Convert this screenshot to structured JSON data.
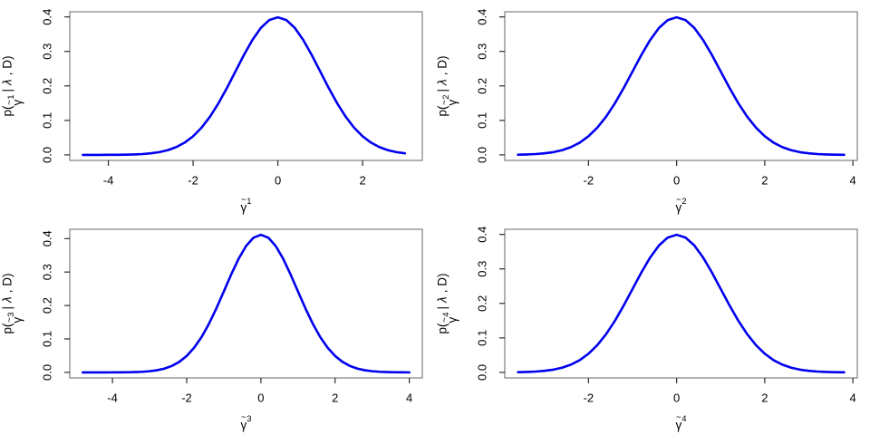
{
  "figure": {
    "background": "#ffffff",
    "curve_color": "#0000ee",
    "box_color": "#898989",
    "tick_color": "#2b2b2b",
    "text_color": "#000000",
    "label_parts": {
      "p_open": "p(",
      "gamma": "γ",
      "tilde": "~",
      "pipe": "|",
      "lambda": "λ",
      "comma": ",",
      "d_close": "D)"
    }
  },
  "chart_data": [
    {
      "type": "line",
      "panel": "top-left",
      "title": "",
      "xlabel": "γ̃₁",
      "ylabel": "p(γ̃₁ | λ , D)",
      "label_index": "1",
      "legend": "none",
      "grid": false,
      "x_ticks": [
        -4,
        -2,
        0,
        2
      ],
      "y_ticks": [
        "0.0",
        "0.1",
        "0.2",
        "0.3",
        "0.4"
      ],
      "xlim": [
        -4.91,
        3.41
      ],
      "ylim": [
        -0.016,
        0.4149
      ],
      "x": [
        -4.6,
        -4.4,
        -4.2,
        -4,
        -3.8,
        -3.6,
        -3.4,
        -3.2,
        -3,
        -2.8,
        -2.6,
        -2.4,
        -2.2,
        -2,
        -1.8,
        -1.6,
        -1.4,
        -1.2,
        -1,
        -0.8,
        -0.6,
        -0.4,
        -0.2,
        0,
        0.2,
        0.4,
        0.6,
        0.8,
        1,
        1.2,
        1.4,
        1.6,
        1.8,
        2,
        2.2,
        2.4,
        2.6,
        2.8,
        3
      ],
      "y": [
        1e-05,
        2e-05,
        6e-05,
        0.00013,
        0.00029,
        0.00061,
        0.00123,
        0.00238,
        0.00443,
        0.00792,
        0.01358,
        0.02239,
        0.03547,
        0.05399,
        0.07895,
        0.11092,
        0.14973,
        0.19419,
        0.24197,
        0.28969,
        0.33322,
        0.36827,
        0.39104,
        0.39894,
        0.39104,
        0.36827,
        0.33322,
        0.28969,
        0.24197,
        0.19419,
        0.14973,
        0.11092,
        0.07895,
        0.05399,
        0.03547,
        0.02239,
        0.01358,
        0.00792,
        0.00443
      ]
    },
    {
      "type": "line",
      "panel": "top-right",
      "title": "",
      "xlabel": "γ̃₂",
      "ylabel": "p(γ̃₂ | λ , D)",
      "label_index": "2",
      "legend": "none",
      "grid": false,
      "x_ticks": [
        -2,
        0,
        2,
        4
      ],
      "y_ticks": [
        "0.0",
        "0.1",
        "0.2",
        "0.3",
        "0.4"
      ],
      "xlim": [
        -3.9,
        4.1
      ],
      "ylim": [
        -0.016,
        0.4149
      ],
      "x": [
        -3.6,
        -3.4,
        -3.2,
        -3,
        -2.8,
        -2.6,
        -2.4,
        -2.2,
        -2,
        -1.8,
        -1.6,
        -1.4,
        -1.2,
        -1,
        -0.8,
        -0.6,
        -0.4,
        -0.2,
        0,
        0.2,
        0.4,
        0.6,
        0.8,
        1,
        1.2,
        1.4,
        1.6,
        1.8,
        2,
        2.2,
        2.4,
        2.6,
        2.8,
        3,
        3.2,
        3.4,
        3.6,
        3.8
      ],
      "y": [
        0.00061,
        0.00123,
        0.00238,
        0.00443,
        0.00792,
        0.01358,
        0.02239,
        0.03547,
        0.05399,
        0.07895,
        0.11092,
        0.14973,
        0.19419,
        0.24197,
        0.28969,
        0.33322,
        0.36827,
        0.39104,
        0.39894,
        0.39104,
        0.36827,
        0.33322,
        0.28969,
        0.24197,
        0.19419,
        0.14973,
        0.11092,
        0.07895,
        0.05399,
        0.03547,
        0.02239,
        0.01358,
        0.00792,
        0.00443,
        0.00238,
        0.00123,
        0.00061,
        0.00029
      ]
    },
    {
      "type": "line",
      "panel": "bottom-left",
      "title": "",
      "xlabel": "γ̃₃",
      "ylabel": "p(γ̃₃ | λ , D)",
      "label_index": "3",
      "legend": "none",
      "grid": false,
      "x_ticks": [
        -4,
        -2,
        0,
        2,
        4
      ],
      "y_ticks": [
        "0.0",
        "0.1",
        "0.2",
        "0.3",
        "0.4"
      ],
      "xlim": [
        -5.15,
        4.35
      ],
      "ylim": [
        -0.0165,
        0.4278
      ],
      "x": [
        -4.8,
        -4.6,
        -4.4,
        -4.2,
        -4,
        -3.8,
        -3.6,
        -3.4,
        -3.2,
        -3,
        -2.8,
        -2.6,
        -2.4,
        -2.2,
        -2,
        -1.8,
        -1.6,
        -1.4,
        -1.2,
        -1,
        -0.8,
        -0.6,
        -0.4,
        -0.2,
        0,
        0.2,
        0.4,
        0.6,
        0.8,
        1,
        1.2,
        1.4,
        1.6,
        1.8,
        2,
        2.2,
        2.4,
        2.6,
        2.8,
        3,
        3.2,
        3.4,
        3.6,
        3.8,
        4
      ],
      "y": [
        2e-06,
        5e-06,
        1.4e-05,
        3.5e-05,
        8.4e-05,
        0.00019,
        0.00042,
        0.00088,
        0.00178,
        0.00344,
        0.00638,
        0.01132,
        0.01927,
        0.03141,
        0.04907,
        0.07352,
        0.10551,
        0.14514,
        0.19134,
        0.24173,
        0.29271,
        0.33966,
        0.37775,
        0.40263,
        0.41127,
        0.40263,
        0.37775,
        0.33966,
        0.29271,
        0.24173,
        0.19134,
        0.14514,
        0.10551,
        0.07352,
        0.04907,
        0.03141,
        0.01927,
        0.01132,
        0.00638,
        0.00344,
        0.00178,
        0.00088,
        0.00042,
        0.00019,
        8.4e-05
      ]
    },
    {
      "type": "line",
      "panel": "bottom-right",
      "title": "",
      "xlabel": "γ̃₄",
      "ylabel": "p(γ̃₄ | λ , D)",
      "label_index": "4",
      "legend": "none",
      "grid": false,
      "x_ticks": [
        -2,
        0,
        2,
        4
      ],
      "y_ticks": [
        "0.0",
        "0.1",
        "0.2",
        "0.3",
        "0.4"
      ],
      "xlim": [
        -3.9,
        4.1
      ],
      "ylim": [
        -0.016,
        0.4149
      ],
      "x": [
        -3.6,
        -3.4,
        -3.2,
        -3,
        -2.8,
        -2.6,
        -2.4,
        -2.2,
        -2,
        -1.8,
        -1.6,
        -1.4,
        -1.2,
        -1,
        -0.8,
        -0.6,
        -0.4,
        -0.2,
        0,
        0.2,
        0.4,
        0.6,
        0.8,
        1,
        1.2,
        1.4,
        1.6,
        1.8,
        2,
        2.2,
        2.4,
        2.6,
        2.8,
        3,
        3.2,
        3.4,
        3.6,
        3.8
      ],
      "y": [
        0.00061,
        0.00123,
        0.00238,
        0.00443,
        0.00792,
        0.01358,
        0.02239,
        0.03547,
        0.05399,
        0.07895,
        0.11092,
        0.14973,
        0.19419,
        0.24197,
        0.28969,
        0.33322,
        0.36827,
        0.39104,
        0.39894,
        0.39104,
        0.36827,
        0.33322,
        0.28969,
        0.24197,
        0.19419,
        0.14973,
        0.11092,
        0.07895,
        0.05399,
        0.03547,
        0.02239,
        0.01358,
        0.00792,
        0.00443,
        0.00238,
        0.00123,
        0.00061,
        0.00029
      ]
    }
  ]
}
